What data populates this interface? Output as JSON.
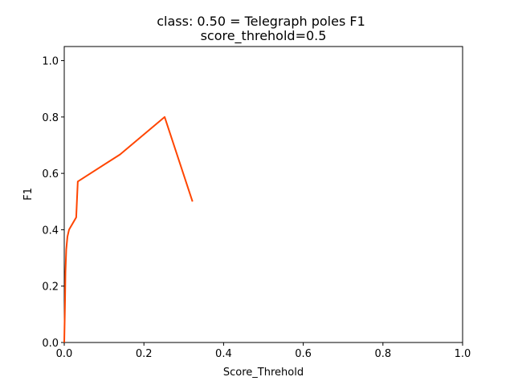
{
  "chart_data": {
    "type": "line",
    "title": "class: 0.50 = Telegraph poles F1",
    "subtitle": "score_threhold=0.5",
    "xlabel": "Score_Threhold",
    "ylabel": "F1",
    "xlim": [
      0.0,
      1.0
    ],
    "ylim": [
      0.0,
      1.05
    ],
    "xticks": [
      "0.0",
      "0.2",
      "0.4",
      "0.6",
      "0.8",
      "1.0"
    ],
    "yticks": [
      "0.0",
      "0.2",
      "0.4",
      "0.6",
      "0.8",
      "1.0"
    ],
    "grid": false,
    "series": [
      {
        "color": "#ff4500",
        "x": [
          0.0,
          0.002,
          0.003,
          0.005,
          0.008,
          0.012,
          0.03,
          0.034,
          0.14,
          0.252,
          0.322
        ],
        "y": [
          0.0,
          0.15,
          0.25,
          0.33,
          0.375,
          0.4,
          0.444,
          0.571,
          0.667,
          0.8,
          0.5
        ]
      }
    ]
  }
}
